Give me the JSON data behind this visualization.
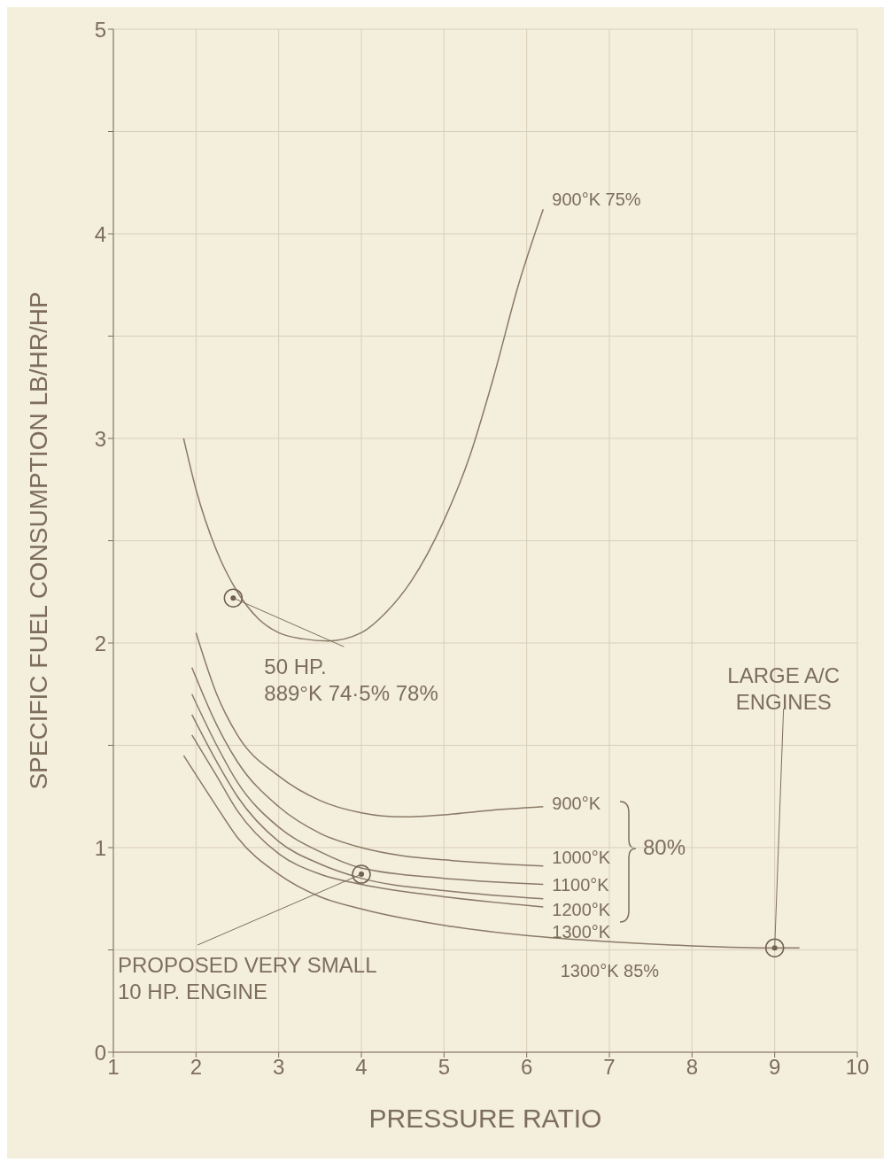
{
  "chart_data": {
    "type": "line",
    "xlabel": "PRESSURE RATIO",
    "ylabel": "SPECIFIC FUEL CONSUMPTION LB/HR/HP",
    "xlim": [
      1,
      10
    ],
    "xticks": [
      1,
      2,
      3,
      4,
      5,
      6,
      7,
      8,
      9,
      10
    ],
    "ylim": [
      0,
      5
    ],
    "yticks": [
      0,
      {
        "value": 0.5,
        "label": null
      },
      1,
      {
        "value": 1.5,
        "label": null
      },
      2,
      {
        "value": 2.5,
        "label": null
      },
      3,
      {
        "value": 3.5,
        "label": null
      },
      4,
      {
        "value": 4.5,
        "label": null
      },
      5
    ],
    "grid": true,
    "marker": "none",
    "series": [
      {
        "name": "900°K 75%",
        "color": "#8a7a66",
        "x": [
          1.85,
          2.0,
          2.25,
          2.5,
          2.75,
          3.0,
          3.3,
          3.6,
          4.0,
          4.3,
          4.6,
          5.0,
          5.3,
          5.6,
          5.9,
          6.2
        ],
        "values": [
          3.0,
          2.75,
          2.45,
          2.25,
          2.12,
          2.05,
          2.02,
          2.01,
          2.05,
          2.15,
          2.3,
          2.6,
          2.9,
          3.3,
          3.75,
          4.12
        ]
      },
      {
        "name": "900°K",
        "color": "#8a7a66",
        "x": [
          2.0,
          2.25,
          2.5,
          3.0,
          3.5,
          4.0,
          4.5,
          5.0,
          5.5,
          6.2
        ],
        "values": [
          2.05,
          1.75,
          1.55,
          1.35,
          1.23,
          1.17,
          1.15,
          1.16,
          1.18,
          1.2
        ]
      },
      {
        "name": "1000°K",
        "color": "#8a7a66",
        "x": [
          1.95,
          2.25,
          2.5,
          3.0,
          3.5,
          4.0,
          4.5,
          5.0,
          6.2
        ],
        "values": [
          1.88,
          1.6,
          1.42,
          1.2,
          1.07,
          1.0,
          0.96,
          0.94,
          0.91
        ]
      },
      {
        "name": "1100°K",
        "color": "#8a7a66",
        "x": [
          1.95,
          2.25,
          2.5,
          3.0,
          3.5,
          4.0,
          5.0,
          6.2
        ],
        "values": [
          1.75,
          1.5,
          1.32,
          1.1,
          0.98,
          0.9,
          0.85,
          0.82
        ]
      },
      {
        "name": "1200°K",
        "color": "#8a7a66",
        "x": [
          1.95,
          2.25,
          2.5,
          3.0,
          3.5,
          4.0,
          5.0,
          6.2
        ],
        "values": [
          1.65,
          1.42,
          1.25,
          1.03,
          0.92,
          0.85,
          0.79,
          0.75
        ]
      },
      {
        "name": "1300°K",
        "color": "#8a7a66",
        "x": [
          1.95,
          2.25,
          2.5,
          3.0,
          3.5,
          4.0,
          5.0,
          6.2
        ],
        "values": [
          1.55,
          1.35,
          1.18,
          0.97,
          0.87,
          0.82,
          0.76,
          0.71
        ]
      },
      {
        "name": "1300°K 85%",
        "color": "#8a7a66",
        "x": [
          1.85,
          2.25,
          2.5,
          3.0,
          3.5,
          4.0,
          5.0,
          6.0,
          7.0,
          8.0,
          9.0,
          9.3
        ],
        "values": [
          1.45,
          1.2,
          1.05,
          0.87,
          0.76,
          0.7,
          0.62,
          0.57,
          0.54,
          0.52,
          0.51,
          0.51
        ]
      },
      {
        "type": "scatter",
        "marker": "circle",
        "color": "#6f604e",
        "x": [
          2.45,
          4.0,
          9.0
        ],
        "values": [
          2.22,
          0.87,
          0.51
        ]
      }
    ],
    "annotations": [
      {
        "text": "50 HP.\n889°K 74·5% 78%",
        "x": 2.45,
        "y": 2.22
      },
      {
        "text": "PROPOSED VERY SMALL\n10 HP. ENGINE",
        "x": 4.0,
        "y": 0.87
      },
      {
        "text": "LARGE A/C\nENGINES",
        "x": 9.0,
        "y": 0.51
      },
      "80%"
    ]
  }
}
